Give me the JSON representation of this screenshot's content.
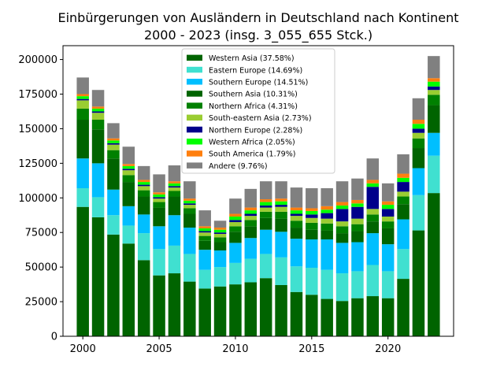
{
  "chart_data": {
    "type": "bar",
    "stacked": true,
    "title": "Einbürgerungen von Ausländern in Deutschland nach Kontinent",
    "subtitle": "2000 - 2023 (insg. 3_055_655 Stck.)",
    "xlabel": "",
    "ylabel": "",
    "x": [
      2000,
      2001,
      2002,
      2003,
      2004,
      2005,
      2006,
      2007,
      2008,
      2009,
      2010,
      2011,
      2012,
      2013,
      2014,
      2015,
      2016,
      2017,
      2018,
      2019,
      2020,
      2021,
      2022,
      2023
    ],
    "xlim": [
      1998.7,
      2024.3
    ],
    "ylim": [
      0,
      210000
    ],
    "x_ticks": [
      2000,
      2005,
      2010,
      2015,
      2020
    ],
    "x_tick_labels": [
      "2000",
      "2005",
      "2010",
      "2015",
      "2020"
    ],
    "y_ticks": [
      0,
      25000,
      50000,
      75000,
      100000,
      125000,
      150000,
      175000,
      200000
    ],
    "y_tick_labels": [
      "0",
      "25000",
      "50000",
      "75000",
      "100000",
      "125000",
      "150000",
      "175000",
      "200000"
    ],
    "grid": false,
    "legend_position": "top-center",
    "series": [
      {
        "name": "Western Asia (37.58%)",
        "color": "#006400",
        "values": [
          93500,
          86000,
          73500,
          67000,
          55000,
          44000,
          45500,
          39500,
          34500,
          36000,
          37500,
          39000,
          42000,
          37000,
          32000,
          30000,
          27000,
          25500,
          27500,
          29000,
          27500,
          41500,
          76500,
          103500
        ]
      },
      {
        "name": "Eastern Europe (14.69%)",
        "color": "#40E0D0",
        "values": [
          13500,
          14500,
          14000,
          13000,
          19500,
          19000,
          20000,
          20000,
          13500,
          14000,
          15500,
          17000,
          17500,
          20000,
          18500,
          19500,
          21000,
          20000,
          19500,
          22500,
          19500,
          21500,
          25500,
          27000
        ]
      },
      {
        "name": "Southern Europe (14.51%)",
        "color": "#00BFFF",
        "values": [
          21500,
          24500,
          18500,
          14000,
          13500,
          16500,
          22000,
          19000,
          14500,
          12000,
          14500,
          15000,
          17500,
          18500,
          20000,
          20500,
          22000,
          22000,
          21000,
          23000,
          19500,
          21500,
          19500,
          16500
        ]
      },
      {
        "name": "Southern Asia (10.31%)",
        "color": "#006400",
        "values": [
          28000,
          24500,
          22500,
          17500,
          13000,
          13500,
          13500,
          10000,
          6500,
          6000,
          8000,
          8500,
          8500,
          9500,
          8000,
          7000,
          6500,
          7000,
          8000,
          8500,
          11500,
          11000,
          14500,
          20000
        ]
      },
      {
        "name": "Northern Africa (4.31%)",
        "color": "#008000",
        "values": [
          8000,
          7000,
          6000,
          5000,
          4500,
          4000,
          4000,
          4000,
          3500,
          3500,
          4000,
          4500,
          4500,
          5000,
          5000,
          5000,
          5000,
          5000,
          5000,
          5000,
          5000,
          5500,
          7000,
          7500
        ]
      },
      {
        "name": "South-eastern Asia (2.73%)",
        "color": "#9ACD32",
        "values": [
          6000,
          5000,
          4000,
          3500,
          3000,
          2500,
          2500,
          2500,
          2500,
          2500,
          3000,
          3000,
          3000,
          3500,
          3500,
          3500,
          3500,
          3500,
          4000,
          4000,
          3500,
          3500,
          4000,
          3500
        ]
      },
      {
        "name": "Northern Europe (2.28%)",
        "color": "#00008B",
        "values": [
          1000,
          1000,
          1000,
          1000,
          1000,
          1000,
          1000,
          1000,
          1000,
          1000,
          1500,
          1500,
          1500,
          1500,
          1500,
          2500,
          4000,
          9000,
          8500,
          16000,
          5500,
          7000,
          3000,
          2500
        ]
      },
      {
        "name": "Western Africa (2.05%)",
        "color": "#00FF00",
        "values": [
          2000,
          2000,
          2000,
          2000,
          2000,
          2000,
          2000,
          2000,
          2000,
          2000,
          2500,
          2500,
          2500,
          2500,
          2500,
          2500,
          2500,
          2500,
          2500,
          2500,
          3000,
          3000,
          3500,
          3500
        ]
      },
      {
        "name": "South America (1.79%)",
        "color": "#FF7F0E",
        "values": [
          1500,
          1500,
          1500,
          1500,
          1500,
          1500,
          1500,
          1500,
          1500,
          1500,
          2000,
          2000,
          2000,
          2000,
          2000,
          2000,
          2500,
          2500,
          2500,
          2500,
          2500,
          3000,
          3000,
          2500
        ]
      },
      {
        "name": "Andere (9.76%)",
        "color": "#808080",
        "values": [
          12000,
          12000,
          11000,
          12500,
          10000,
          13000,
          11500,
          12500,
          11500,
          5000,
          11000,
          13500,
          13000,
          12500,
          14500,
          14500,
          13000,
          15000,
          15500,
          15500,
          13000,
          14000,
          15500,
          16000
        ]
      }
    ]
  }
}
